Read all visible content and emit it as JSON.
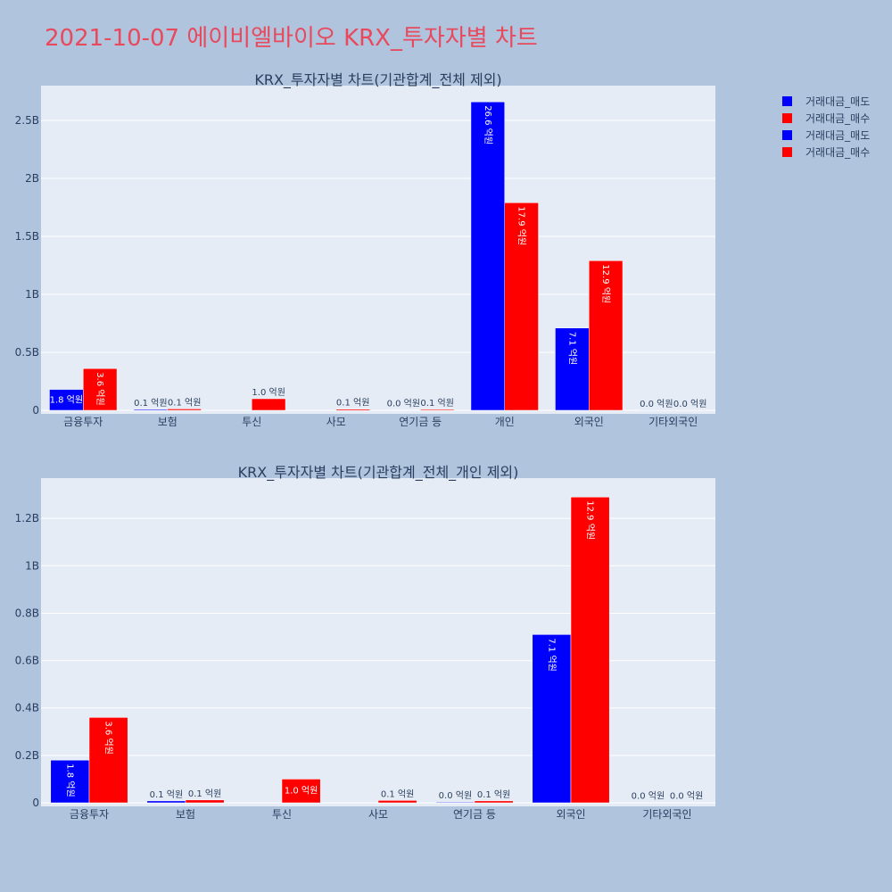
{
  "title": "2021-10-07 에이비엘바이오 KRX_투자자별 차트",
  "colors": {
    "sell": "#0000ff",
    "buy": "#ff0000",
    "plot_bg": "#e5ecf6",
    "page_bg": "#b0c4de"
  },
  "legend": [
    {
      "name": "거래대금_매도",
      "color": "#0000ff"
    },
    {
      "name": "거래대금_매수",
      "color": "#ff0000"
    },
    {
      "name": "거래대금_매도",
      "color": "#0000ff"
    },
    {
      "name": "거래대금_매수",
      "color": "#ff0000"
    }
  ],
  "chart_data": [
    {
      "type": "bar",
      "title": "KRX_투자자별 차트(기관합계_전체 제외)",
      "categories": [
        "금융투자",
        "보험",
        "투신",
        "사모",
        "연기금 등",
        "개인",
        "외국인",
        "기타외국인"
      ],
      "ylim": [
        0,
        2.8
      ],
      "yticks": [
        0,
        0.5,
        1,
        1.5,
        2,
        2.5
      ],
      "ytick_labels": [
        "0",
        "0.5B",
        "1B",
        "1.5B",
        "2B",
        "2.5B"
      ],
      "legend_position": "top-right",
      "grid": true,
      "series": [
        {
          "name": "거래대금_매도",
          "values": [
            0.18,
            0.008,
            0,
            0,
            0.003,
            2.66,
            0.71,
            0.001
          ],
          "labels": [
            "1.8 억원",
            "0.1 억원",
            "",
            "",
            "0.0 억원",
            "26.6 억원",
            "7.1 억원",
            "0.0 억원"
          ]
        },
        {
          "name": "거래대금_매수",
          "values": [
            0.36,
            0.012,
            0.1,
            0.01,
            0.008,
            1.79,
            1.29,
            0.001
          ],
          "labels": [
            "3.6 억원",
            "0.1 억원",
            "1.0 억원",
            "0.1 억원",
            "0.1 억원",
            "17.9 억원",
            "12.9 억원",
            "0.0 억원"
          ]
        }
      ]
    },
    {
      "type": "bar",
      "title": "KRX_투자자별 차트(기관합계_전체_개인 제외)",
      "categories": [
        "금융투자",
        "보험",
        "투신",
        "사모",
        "연기금 등",
        "외국인",
        "기타외국인"
      ],
      "ylim": [
        0,
        1.37
      ],
      "yticks": [
        0,
        0.2,
        0.4,
        0.6,
        0.8,
        1,
        1.2
      ],
      "ytick_labels": [
        "0",
        "0.2B",
        "0.4B",
        "0.6B",
        "0.8B",
        "1B",
        "1.2B"
      ],
      "legend_position": "top-right",
      "grid": true,
      "series": [
        {
          "name": "거래대금_매도",
          "values": [
            0.18,
            0.008,
            0,
            0,
            0.003,
            0.71,
            0.001
          ],
          "labels": [
            "1.8 억원",
            "0.1 억원",
            "",
            "",
            "0.0 억원",
            "7.1 억원",
            "0.0 억원"
          ]
        },
        {
          "name": "거래대금_매수",
          "values": [
            0.36,
            0.012,
            0.1,
            0.01,
            0.008,
            1.29,
            0.001
          ],
          "labels": [
            "3.6 억원",
            "0.1 억원",
            "1.0 억원",
            "0.1 억원",
            "0.1 억원",
            "12.9 억원",
            "0.0 억원"
          ]
        }
      ]
    }
  ]
}
